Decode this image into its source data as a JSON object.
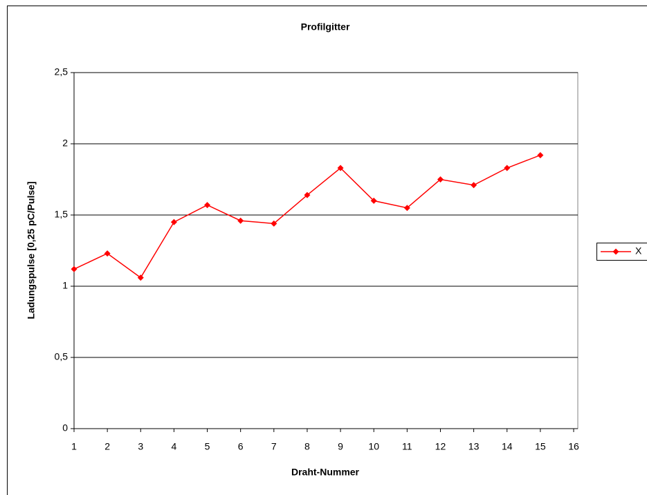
{
  "chart_data": {
    "type": "line",
    "title": "Profilgitter",
    "x_label": "Draht-Nummer",
    "y_label": "Ladungspulse [0,25 pC/Pulse]",
    "x": [
      1,
      2,
      3,
      4,
      5,
      6,
      7,
      8,
      9,
      10,
      11,
      12,
      13,
      14,
      15
    ],
    "series": [
      {
        "name": "X",
        "color": "#ff0000",
        "values": [
          1.12,
          1.23,
          1.06,
          1.45,
          1.57,
          1.46,
          1.44,
          1.64,
          1.83,
          1.6,
          1.55,
          1.75,
          1.71,
          1.83,
          1.92
        ]
      }
    ],
    "xlim": [
      1,
      16
    ],
    "xticks": [
      1,
      2,
      3,
      4,
      5,
      6,
      7,
      8,
      9,
      10,
      11,
      12,
      13,
      14,
      15,
      16
    ],
    "ylim": [
      0,
      2.5
    ],
    "yticks": [
      0,
      {
        "value": 0.5,
        "label": "0,5"
      },
      1,
      {
        "value": 1.5,
        "label": "1,5"
      },
      2,
      {
        "value": 2.5,
        "label": "2,5"
      }
    ],
    "grid": true,
    "legend": "right"
  }
}
